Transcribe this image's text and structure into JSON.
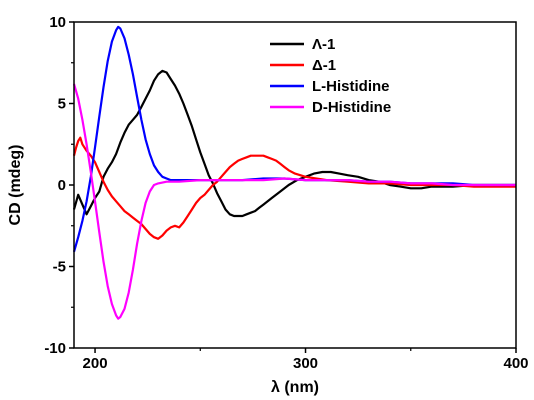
{
  "chart_data": {
    "type": "line",
    "xlabel": "λ (nm)",
    "ylabel": "CD (mdeg)",
    "xlim": [
      190,
      400
    ],
    "ylim": [
      -10,
      10
    ],
    "x_ticks": [
      200,
      300,
      400
    ],
    "y_ticks": [
      10,
      5,
      0,
      -5,
      -10
    ],
    "grid": false,
    "legend_position": "top-right",
    "series": [
      {
        "name": "Λ-1",
        "color": "#000000",
        "points": [
          [
            190,
            -1.5
          ],
          [
            192,
            -0.6
          ],
          [
            194,
            -1.2
          ],
          [
            196,
            -1.8
          ],
          [
            198,
            -1.3
          ],
          [
            200,
            -0.8
          ],
          [
            202,
            -0.4
          ],
          [
            204,
            0.5
          ],
          [
            206,
            1.0
          ],
          [
            208,
            1.4
          ],
          [
            210,
            1.9
          ],
          [
            212,
            2.6
          ],
          [
            214,
            3.2
          ],
          [
            216,
            3.7
          ],
          [
            218,
            4.0
          ],
          [
            220,
            4.3
          ],
          [
            222,
            4.8
          ],
          [
            224,
            5.3
          ],
          [
            226,
            5.8
          ],
          [
            228,
            6.4
          ],
          [
            230,
            6.8
          ],
          [
            232,
            7.0
          ],
          [
            234,
            6.9
          ],
          [
            236,
            6.5
          ],
          [
            238,
            6.1
          ],
          [
            240,
            5.6
          ],
          [
            242,
            5.0
          ],
          [
            244,
            4.3
          ],
          [
            246,
            3.6
          ],
          [
            248,
            2.8
          ],
          [
            250,
            2.0
          ],
          [
            252,
            1.3
          ],
          [
            254,
            0.6
          ],
          [
            256,
            0.1
          ],
          [
            258,
            -0.5
          ],
          [
            260,
            -1.0
          ],
          [
            262,
            -1.5
          ],
          [
            264,
            -1.8
          ],
          [
            266,
            -1.9
          ],
          [
            268,
            -1.9
          ],
          [
            270,
            -1.9
          ],
          [
            272,
            -1.8
          ],
          [
            274,
            -1.7
          ],
          [
            276,
            -1.6
          ],
          [
            278,
            -1.4
          ],
          [
            280,
            -1.2
          ],
          [
            284,
            -0.8
          ],
          [
            288,
            -0.4
          ],
          [
            292,
            0.0
          ],
          [
            296,
            0.3
          ],
          [
            300,
            0.5
          ],
          [
            304,
            0.7
          ],
          [
            308,
            0.8
          ],
          [
            312,
            0.8
          ],
          [
            316,
            0.7
          ],
          [
            320,
            0.6
          ],
          [
            325,
            0.5
          ],
          [
            330,
            0.3
          ],
          [
            335,
            0.2
          ],
          [
            340,
            0.0
          ],
          [
            345,
            -0.1
          ],
          [
            350,
            -0.2
          ],
          [
            355,
            -0.2
          ],
          [
            360,
            -0.1
          ],
          [
            370,
            -0.1
          ],
          [
            380,
            0.0
          ],
          [
            390,
            0.0
          ],
          [
            400,
            0.0
          ]
        ]
      },
      {
        "name": "Δ-1",
        "color": "#ff0000",
        "points": [
          [
            190,
            1.8
          ],
          [
            191,
            2.3
          ],
          [
            192,
            2.7
          ],
          [
            193,
            2.9
          ],
          [
            194,
            2.5
          ],
          [
            196,
            2.1
          ],
          [
            198,
            1.8
          ],
          [
            200,
            1.4
          ],
          [
            202,
            0.8
          ],
          [
            204,
            0.2
          ],
          [
            206,
            -0.3
          ],
          [
            208,
            -0.7
          ],
          [
            210,
            -1.0
          ],
          [
            212,
            -1.3
          ],
          [
            214,
            -1.6
          ],
          [
            216,
            -1.8
          ],
          [
            218,
            -2.0
          ],
          [
            220,
            -2.2
          ],
          [
            222,
            -2.4
          ],
          [
            224,
            -2.7
          ],
          [
            226,
            -3.0
          ],
          [
            228,
            -3.2
          ],
          [
            230,
            -3.3
          ],
          [
            232,
            -3.1
          ],
          [
            234,
            -2.8
          ],
          [
            236,
            -2.6
          ],
          [
            238,
            -2.5
          ],
          [
            240,
            -2.6
          ],
          [
            242,
            -2.3
          ],
          [
            244,
            -1.9
          ],
          [
            246,
            -1.5
          ],
          [
            248,
            -1.1
          ],
          [
            250,
            -0.8
          ],
          [
            252,
            -0.6
          ],
          [
            254,
            -0.3
          ],
          [
            256,
            0.0
          ],
          [
            258,
            0.2
          ],
          [
            260,
            0.5
          ],
          [
            262,
            0.8
          ],
          [
            264,
            1.1
          ],
          [
            266,
            1.3
          ],
          [
            268,
            1.5
          ],
          [
            270,
            1.6
          ],
          [
            272,
            1.7
          ],
          [
            274,
            1.8
          ],
          [
            276,
            1.8
          ],
          [
            278,
            1.8
          ],
          [
            280,
            1.8
          ],
          [
            282,
            1.7
          ],
          [
            284,
            1.6
          ],
          [
            286,
            1.5
          ],
          [
            288,
            1.3
          ],
          [
            290,
            1.1
          ],
          [
            292,
            0.9
          ],
          [
            295,
            0.7
          ],
          [
            300,
            0.5
          ],
          [
            305,
            0.4
          ],
          [
            310,
            0.3
          ],
          [
            320,
            0.2
          ],
          [
            330,
            0.1
          ],
          [
            340,
            0.1
          ],
          [
            350,
            0.0
          ],
          [
            360,
            0.0
          ],
          [
            370,
            0.0
          ],
          [
            380,
            -0.1
          ],
          [
            390,
            -0.1
          ],
          [
            400,
            -0.1
          ]
        ]
      },
      {
        "name": "L-Histidine",
        "color": "#0000ff",
        "points": [
          [
            190,
            -4.1
          ],
          [
            192,
            -3.2
          ],
          [
            194,
            -2.2
          ],
          [
            196,
            -1.0
          ],
          [
            198,
            0.5
          ],
          [
            200,
            2.3
          ],
          [
            202,
            4.2
          ],
          [
            204,
            6.0
          ],
          [
            206,
            7.6
          ],
          [
            208,
            8.8
          ],
          [
            210,
            9.5
          ],
          [
            211,
            9.7
          ],
          [
            212,
            9.6
          ],
          [
            214,
            9.0
          ],
          [
            216,
            8.0
          ],
          [
            218,
            6.8
          ],
          [
            220,
            5.4
          ],
          [
            222,
            4.0
          ],
          [
            224,
            2.8
          ],
          [
            226,
            1.9
          ],
          [
            228,
            1.2
          ],
          [
            230,
            0.8
          ],
          [
            232,
            0.5
          ],
          [
            234,
            0.4
          ],
          [
            236,
            0.3
          ],
          [
            240,
            0.3
          ],
          [
            250,
            0.3
          ],
          [
            260,
            0.3
          ],
          [
            270,
            0.3
          ],
          [
            280,
            0.4
          ],
          [
            290,
            0.4
          ],
          [
            300,
            0.3
          ],
          [
            310,
            0.3
          ],
          [
            320,
            0.3
          ],
          [
            330,
            0.2
          ],
          [
            340,
            0.2
          ],
          [
            350,
            0.1
          ],
          [
            360,
            0.1
          ],
          [
            370,
            0.1
          ],
          [
            380,
            0.0
          ],
          [
            390,
            0.0
          ],
          [
            400,
            0.0
          ]
        ]
      },
      {
        "name": "D-Histidine",
        "color": "#ff00ff",
        "points": [
          [
            190,
            6.2
          ],
          [
            192,
            5.3
          ],
          [
            194,
            4.0
          ],
          [
            196,
            2.5
          ],
          [
            198,
            0.8
          ],
          [
            200,
            -1.0
          ],
          [
            202,
            -2.9
          ],
          [
            204,
            -4.7
          ],
          [
            206,
            -6.2
          ],
          [
            208,
            -7.3
          ],
          [
            210,
            -8.0
          ],
          [
            211,
            -8.2
          ],
          [
            212,
            -8.1
          ],
          [
            214,
            -7.6
          ],
          [
            216,
            -6.6
          ],
          [
            218,
            -5.2
          ],
          [
            220,
            -3.6
          ],
          [
            222,
            -2.2
          ],
          [
            224,
            -1.1
          ],
          [
            226,
            -0.4
          ],
          [
            228,
            0.0
          ],
          [
            230,
            0.1
          ],
          [
            234,
            0.2
          ],
          [
            240,
            0.2
          ],
          [
            250,
            0.3
          ],
          [
            260,
            0.3
          ],
          [
            270,
            0.3
          ],
          [
            280,
            0.3
          ],
          [
            290,
            0.4
          ],
          [
            300,
            0.3
          ],
          [
            310,
            0.3
          ],
          [
            320,
            0.3
          ],
          [
            330,
            0.2
          ],
          [
            340,
            0.2
          ],
          [
            350,
            0.1
          ],
          [
            360,
            0.1
          ],
          [
            370,
            0.0
          ],
          [
            380,
            0.0
          ],
          [
            390,
            0.0
          ],
          [
            400,
            0.0
          ]
        ]
      }
    ]
  }
}
